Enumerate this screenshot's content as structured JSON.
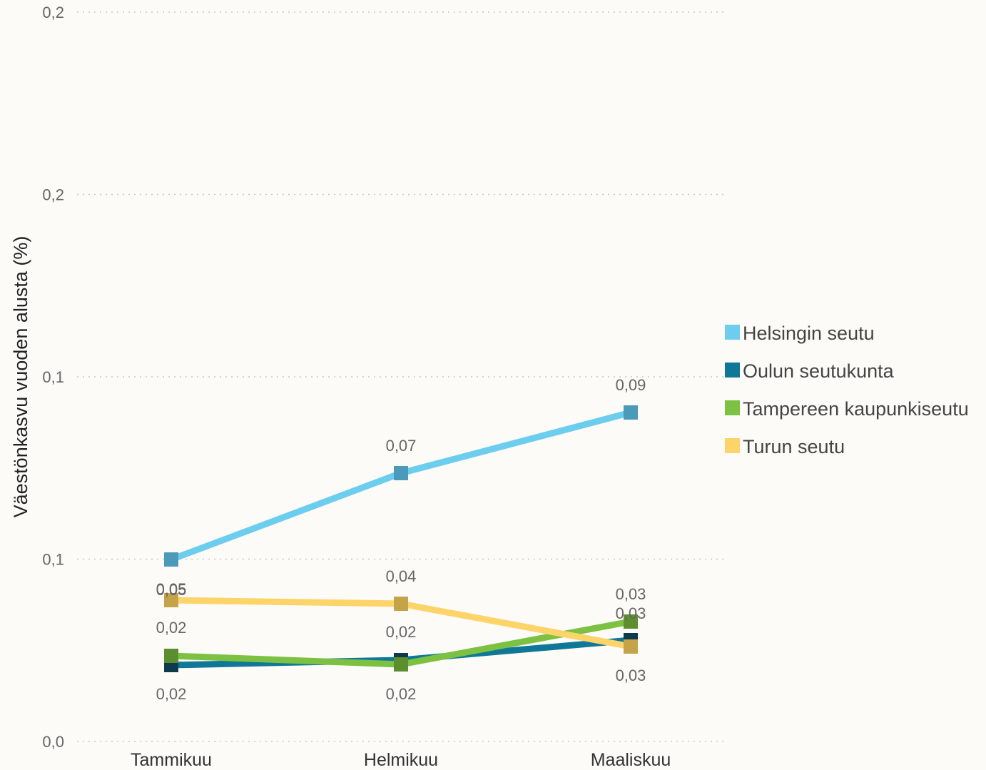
{
  "chart_data": {
    "type": "line",
    "title": "",
    "xlabel": "",
    "ylabel": "Väestönkasvu vuoden alusta (%)",
    "categories": [
      "Tammikuu",
      "Helmikuu",
      "Maaliskuu"
    ],
    "y_tick_labels": [
      "0,0",
      "0,1",
      "0,1",
      "0,2",
      "0,2"
    ],
    "ylim": [
      0,
      0.2
    ],
    "grid": true,
    "legend_position": "right",
    "series": [
      {
        "name": "Helsingin seutu",
        "color": "#6CCDEE",
        "marker_color": "#4C9ABA",
        "values": [
          0.05,
          0.07,
          0.09
        ],
        "labels": [
          "0,05",
          "0,07",
          "0,09"
        ],
        "label_pos": [
          "below",
          "above",
          "above"
        ]
      },
      {
        "name": "Oulun seutukunta",
        "color": "#0F7898",
        "marker_color": "#0E3A4E",
        "values": [
          0.02,
          0.02,
          0.03
        ],
        "labels": [
          "0,02",
          "0,02",
          "0,03"
        ],
        "label_pos": [
          "below",
          "below",
          "above"
        ]
      },
      {
        "name": "Tampereen kaupunkiseutu",
        "color": "#7DC142",
        "marker_color": "#5C8E2F",
        "values": [
          0.02,
          0.02,
          0.03
        ],
        "labels": [
          "0,02",
          "0,02",
          "0,03"
        ],
        "label_pos": [
          "above",
          "above",
          "above"
        ]
      },
      {
        "name": "Turun seutu",
        "color": "#FCD46A",
        "marker_color": "#C4A349",
        "values": [
          0.05,
          0.04,
          0.03
        ],
        "labels": [
          "0,05",
          "0,04",
          "0,03"
        ],
        "label_pos": [
          "above",
          "above",
          "below"
        ]
      }
    ]
  }
}
